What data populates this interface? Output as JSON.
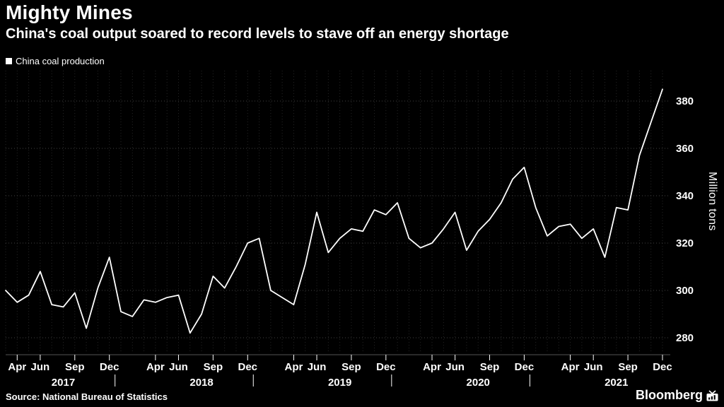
{
  "chart_data": {
    "type": "line",
    "title": "Mighty Mines",
    "subtitle": "China's coal output soared to record levels to stave off an energy shortage",
    "legend": "China coal production",
    "ylabel": "Million tons",
    "ylim": [
      275,
      390
    ],
    "yticks": [
      280,
      300,
      320,
      340,
      360,
      380
    ],
    "grid": "dotted",
    "legend_position": "top-left",
    "xticks": [
      [
        "2017-04",
        "Apr"
      ],
      [
        "2017-06",
        "Jun"
      ],
      [
        "2017-09",
        "Sep"
      ],
      [
        "2017-12",
        "Dec"
      ],
      [
        "2018-04",
        "Apr"
      ],
      [
        "2018-06",
        "Jun"
      ],
      [
        "2018-09",
        "Sep"
      ],
      [
        "2018-12",
        "Dec"
      ],
      [
        "2019-04",
        "Apr"
      ],
      [
        "2019-06",
        "Jun"
      ],
      [
        "2019-09",
        "Sep"
      ],
      [
        "2019-12",
        "Dec"
      ],
      [
        "2020-04",
        "Apr"
      ],
      [
        "2020-06",
        "Jun"
      ],
      [
        "2020-09",
        "Sep"
      ],
      [
        "2020-12",
        "Dec"
      ],
      [
        "2021-04",
        "Apr"
      ],
      [
        "2021-06",
        "Jun"
      ],
      [
        "2021-09",
        "Sep"
      ],
      [
        "2021-12",
        "Dec"
      ]
    ],
    "year_labels": [
      "2017",
      "2018",
      "2019",
      "2020",
      "2021"
    ],
    "series": [
      {
        "name": "China coal production",
        "points": [
          [
            "2017-03",
            300
          ],
          [
            "2017-04",
            295
          ],
          [
            "2017-05",
            298
          ],
          [
            "2017-06",
            308
          ],
          [
            "2017-07",
            294
          ],
          [
            "2017-08",
            293
          ],
          [
            "2017-09",
            299
          ],
          [
            "2017-10",
            284
          ],
          [
            "2017-11",
            301
          ],
          [
            "2017-12",
            314
          ],
          [
            "2018-01",
            291
          ],
          [
            "2018-02",
            289
          ],
          [
            "2018-03",
            296
          ],
          [
            "2018-04",
            295
          ],
          [
            "2018-05",
            297
          ],
          [
            "2018-06",
            298
          ],
          [
            "2018-07",
            282
          ],
          [
            "2018-08",
            290
          ],
          [
            "2018-09",
            306
          ],
          [
            "2018-10",
            301
          ],
          [
            "2018-11",
            310
          ],
          [
            "2018-12",
            320
          ],
          [
            "2019-01",
            322
          ],
          [
            "2019-02",
            300
          ],
          [
            "2019-03",
            297
          ],
          [
            "2019-04",
            294
          ],
          [
            "2019-05",
            311
          ],
          [
            "2019-06",
            333
          ],
          [
            "2019-07",
            316
          ],
          [
            "2019-08",
            322
          ],
          [
            "2019-09",
            326
          ],
          [
            "2019-10",
            325
          ],
          [
            "2019-11",
            334
          ],
          [
            "2019-12",
            332
          ],
          [
            "2020-01",
            337
          ],
          [
            "2020-02",
            322
          ],
          [
            "2020-03",
            318
          ],
          [
            "2020-04",
            320
          ],
          [
            "2020-05",
            326
          ],
          [
            "2020-06",
            333
          ],
          [
            "2020-07",
            317
          ],
          [
            "2020-08",
            325
          ],
          [
            "2020-09",
            330
          ],
          [
            "2020-10",
            337
          ],
          [
            "2020-11",
            347
          ],
          [
            "2020-12",
            352
          ],
          [
            "2021-01",
            335
          ],
          [
            "2021-02",
            323
          ],
          [
            "2021-03",
            327
          ],
          [
            "2021-04",
            328
          ],
          [
            "2021-05",
            322
          ],
          [
            "2021-06",
            326
          ],
          [
            "2021-07",
            314
          ],
          [
            "2021-08",
            335
          ],
          [
            "2021-09",
            334
          ],
          [
            "2021-10",
            357
          ],
          [
            "2021-11",
            371
          ],
          [
            "2021-12",
            385
          ]
        ]
      }
    ]
  },
  "footer": {
    "source": "Source: National Bureau of Statistics",
    "brand": "Bloomberg"
  },
  "colors": {
    "background": "#000000",
    "line": "#ffffff",
    "text": "#ffffff",
    "grid_h": "#424242",
    "grid_v": "#262626",
    "axis": "#555555"
  }
}
